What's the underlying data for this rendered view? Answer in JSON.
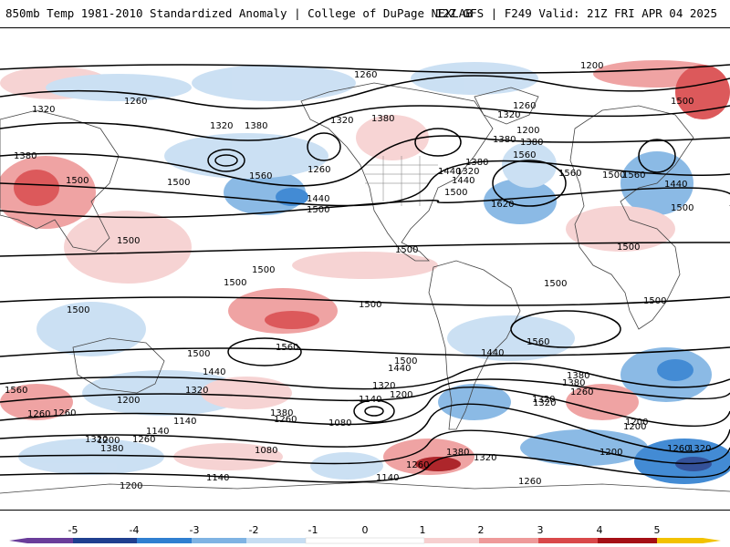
{
  "header": {
    "left_title": "850mb Temp 1981-2010 Standardized Anomaly | College of DuPage NEXLAB",
    "right_title": "12Z GFS | F249 Valid: 21Z FRI APR 04 2025"
  },
  "colorbar": {
    "ticks": [
      "-5",
      "-4",
      "-3",
      "-2",
      "-1",
      "0",
      "1",
      "2",
      "3",
      "4",
      "5"
    ],
    "colors": {
      "m5": "#6a3d9a",
      "m4": "#1f3f8f",
      "m3": "#2f7fd0",
      "m2": "#7fb3e3",
      "m1": "#c6ddf2",
      "zero": "#ffffff",
      "p1": "#f6cfcf",
      "p2": "#ee9a9a",
      "p3": "#d9484a",
      "p4": "#a50f15",
      "p5": "#f2c200"
    }
  },
  "contour_labels": {
    "items": [
      "1260",
      "1200",
      "1320",
      "1380",
      "1260",
      "1320",
      "1380",
      "1320",
      "1380",
      "1260",
      "1380",
      "1500",
      "1380",
      "1440",
      "1500",
      "1560",
      "1560",
      "1320",
      "1260",
      "1200",
      "1380",
      "1320",
      "1440",
      "1560",
      "1500",
      "1500",
      "1500",
      "1440",
      "1500",
      "1620",
      "1560",
      "1500",
      "1440",
      "1500",
      "1500",
      "1500",
      "1500",
      "1500",
      "1500",
      "1500",
      "1500",
      "1500",
      "1560",
      "1500",
      "1560",
      "1440",
      "1500",
      "1440",
      "1380",
      "1320",
      "1260",
      "1200",
      "1260",
      "1320",
      "1140",
      "1080",
      "1200",
      "1140",
      "1200",
      "1260",
      "1380",
      "1440",
      "1380",
      "1320",
      "1260",
      "1200",
      "1140",
      "1080",
      "1260",
      "1380",
      "1320",
      "1260",
      "1200",
      "1140",
      "1200",
      "1140",
      "1260",
      "1320",
      "1380",
      "1320",
      "1260",
      "1320",
      "1200",
      "1560"
    ]
  }
}
